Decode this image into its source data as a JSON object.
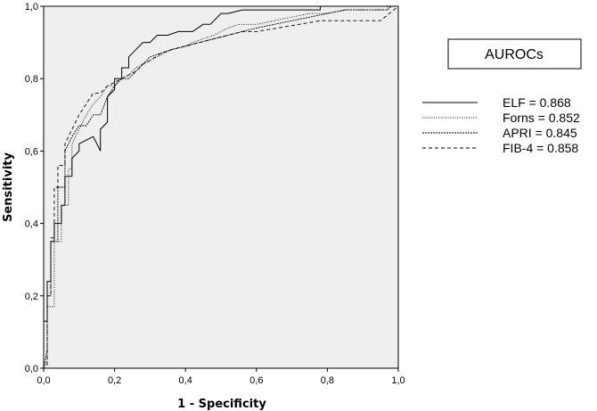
{
  "chart_data": {
    "type": "line",
    "xlabel": "1 - Specificity",
    "ylabel": "Sensitivity",
    "xlim": [
      0,
      1
    ],
    "ylim": [
      0,
      1
    ],
    "xticks": [
      "0,0",
      "0,2",
      "0,4",
      "0,6",
      "0,8",
      "1,0"
    ],
    "yticks": [
      "0,0",
      "0,2",
      "0,4",
      "0,6",
      "0,8",
      "1,0"
    ],
    "grid": false,
    "legend_title": "AUROCs",
    "legend_position": "right",
    "background": "#efefef",
    "series": [
      {
        "name": "ELF = 0.868",
        "style": "solid",
        "x": [
          0.0,
          0.0,
          0.01,
          0.01,
          0.02,
          0.02,
          0.03,
          0.03,
          0.05,
          0.05,
          0.06,
          0.06,
          0.08,
          0.08,
          0.1,
          0.1,
          0.12,
          0.14,
          0.16,
          0.16,
          0.18,
          0.18,
          0.2,
          0.2,
          0.22,
          0.22,
          0.24,
          0.24,
          0.26,
          0.28,
          0.3,
          0.32,
          0.35,
          0.38,
          0.42,
          0.45,
          0.47,
          0.5,
          0.52,
          0.56,
          0.6,
          0.65,
          0.7,
          0.76,
          0.78,
          0.78,
          0.86,
          0.86,
          1.0
        ],
        "y": [
          0.0,
          0.13,
          0.13,
          0.24,
          0.24,
          0.35,
          0.35,
          0.4,
          0.4,
          0.45,
          0.45,
          0.53,
          0.53,
          0.58,
          0.6,
          0.62,
          0.63,
          0.64,
          0.6,
          0.66,
          0.68,
          0.75,
          0.77,
          0.8,
          0.8,
          0.83,
          0.83,
          0.86,
          0.88,
          0.9,
          0.9,
          0.92,
          0.92,
          0.93,
          0.93,
          0.95,
          0.95,
          0.98,
          0.98,
          0.99,
          0.99,
          0.99,
          0.99,
          0.99,
          0.99,
          1.0,
          1.0,
          1.0,
          1.0
        ]
      },
      {
        "name": "Forns = 0.852",
        "style": "dotted",
        "x": [
          0.0,
          0.01,
          0.01,
          0.03,
          0.03,
          0.05,
          0.05,
          0.07,
          0.07,
          0.08,
          0.08,
          0.1,
          0.12,
          0.14,
          0.16,
          0.18,
          0.2,
          0.22,
          0.24,
          0.26,
          0.28,
          0.3,
          0.32,
          0.34,
          0.36,
          0.4,
          0.42,
          0.45,
          0.48,
          0.5,
          0.52,
          0.55,
          0.6,
          0.65,
          0.7,
          0.75,
          0.8,
          0.85,
          0.9,
          0.95,
          0.97,
          0.97,
          1.0
        ],
        "y": [
          0.0,
          0.02,
          0.17,
          0.17,
          0.35,
          0.35,
          0.45,
          0.45,
          0.55,
          0.55,
          0.62,
          0.66,
          0.7,
          0.73,
          0.75,
          0.78,
          0.78,
          0.8,
          0.81,
          0.83,
          0.84,
          0.85,
          0.86,
          0.87,
          0.88,
          0.89,
          0.9,
          0.91,
          0.92,
          0.93,
          0.94,
          0.95,
          0.95,
          0.96,
          0.97,
          0.98,
          0.98,
          0.99,
          0.99,
          0.99,
          0.99,
          1.0,
          1.0
        ]
      },
      {
        "name": "APRI = 0.845",
        "style": "dashdot-fine",
        "x": [
          0.0,
          0.01,
          0.01,
          0.02,
          0.02,
          0.04,
          0.04,
          0.06,
          0.06,
          0.08,
          0.1,
          0.12,
          0.14,
          0.16,
          0.18,
          0.2,
          0.22,
          0.24,
          0.26,
          0.28,
          0.3,
          0.33,
          0.36,
          0.4,
          0.44,
          0.48,
          0.52,
          0.56,
          0.6,
          0.65,
          0.7,
          0.75,
          0.8,
          0.85,
          0.9,
          0.95,
          0.97,
          0.98,
          1.0
        ],
        "y": [
          0.0,
          0.05,
          0.2,
          0.2,
          0.35,
          0.35,
          0.5,
          0.5,
          0.6,
          0.64,
          0.67,
          0.67,
          0.7,
          0.7,
          0.75,
          0.78,
          0.8,
          0.8,
          0.82,
          0.84,
          0.86,
          0.87,
          0.88,
          0.89,
          0.9,
          0.91,
          0.92,
          0.93,
          0.94,
          0.95,
          0.96,
          0.97,
          0.98,
          0.99,
          0.99,
          0.99,
          0.99,
          1.0,
          1.0
        ]
      },
      {
        "name": "FIB-4 = 0.858",
        "style": "dashed",
        "x": [
          0.0,
          0.01,
          0.01,
          0.02,
          0.02,
          0.03,
          0.03,
          0.04,
          0.04,
          0.06,
          0.06,
          0.08,
          0.1,
          0.12,
          0.14,
          0.16,
          0.18,
          0.2,
          0.22,
          0.24,
          0.26,
          0.28,
          0.3,
          0.33,
          0.36,
          0.4,
          0.44,
          0.48,
          0.52,
          0.56,
          0.6,
          0.66,
          0.72,
          0.78,
          0.84,
          0.9,
          0.95,
          1.0
        ],
        "y": [
          0.0,
          0.0,
          0.2,
          0.2,
          0.36,
          0.36,
          0.5,
          0.5,
          0.56,
          0.56,
          0.62,
          0.66,
          0.7,
          0.73,
          0.76,
          0.76,
          0.78,
          0.79,
          0.8,
          0.81,
          0.82,
          0.84,
          0.85,
          0.87,
          0.88,
          0.89,
          0.9,
          0.91,
          0.92,
          0.93,
          0.93,
          0.94,
          0.95,
          0.96,
          0.96,
          0.96,
          0.96,
          1.0
        ]
      }
    ]
  }
}
